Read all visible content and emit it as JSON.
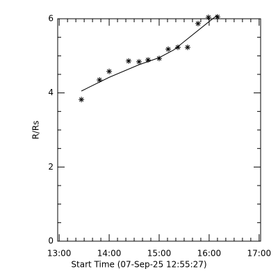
{
  "chart_data": {
    "type": "scatter",
    "xlabel": "Start Time (07-Sep-25 12:55:27)",
    "ylabel": "R/Rs",
    "xlim": [
      12.97,
      17.03
    ],
    "ylim": [
      0,
      6
    ],
    "xticks": [
      {
        "value": 13,
        "label": "13:00"
      },
      {
        "value": 14,
        "label": "14:00"
      },
      {
        "value": 15,
        "label": "15:00"
      },
      {
        "value": 16,
        "label": "16:00"
      },
      {
        "value": 17,
        "label": "17:00"
      }
    ],
    "yticks": [
      0,
      2,
      4,
      6
    ],
    "xminorticks": [
      13.1667,
      13.3333,
      13.5,
      13.6667,
      13.8333,
      14.1667,
      14.3333,
      14.5,
      14.6667,
      14.8333,
      15.1667,
      15.3333,
      15.5,
      15.6667,
      15.8333,
      16.1667,
      16.3333,
      16.5,
      16.6667,
      16.8333
    ],
    "yminorticks": [
      0.5,
      1,
      1.5,
      2.5,
      3,
      3.5,
      4.5,
      5,
      5.5
    ],
    "series": [
      {
        "type": "scatter",
        "color": "#000000",
        "x": [
          13.444,
          13.806,
          14.0,
          14.389,
          14.597,
          14.778,
          15.0,
          15.181,
          15.375,
          15.569,
          15.778,
          15.986,
          16.167
        ],
        "values": [
          3.82,
          4.35,
          4.58,
          4.86,
          4.84,
          4.89,
          4.93,
          5.18,
          5.23,
          5.23,
          5.87,
          6.04,
          6.05
        ]
      },
      {
        "type": "line",
        "color": "#000000",
        "x": [
          13.444,
          14.0,
          14.597,
          15.0,
          15.292,
          15.986,
          16.167
        ],
        "values": [
          4.05,
          4.42,
          4.76,
          4.95,
          5.16,
          5.91,
          6.1
        ]
      }
    ]
  }
}
